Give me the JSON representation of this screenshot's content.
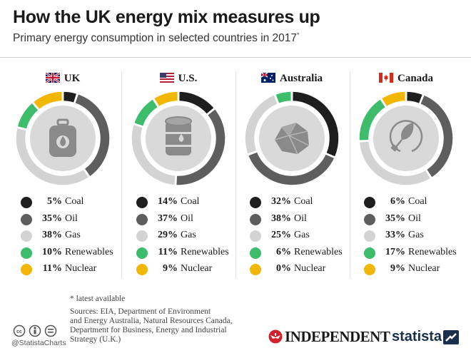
{
  "title": "How the UK energy mix measures up",
  "subtitle": "Primary energy consumption in selected countries in 2017",
  "subtitle_mark": "*",
  "colors": {
    "Coal": "#1e1e1e",
    "Oil": "#5e5e5e",
    "Gas": "#d3d3d3",
    "Renewables": "#3dbd6b",
    "Nuclear": "#f2b705"
  },
  "chart_data": [
    {
      "type": "pie",
      "country": "UK",
      "icon": "gas-cylinder-icon",
      "categories": [
        "Coal",
        "Oil",
        "Gas",
        "Renewables",
        "Nuclear"
      ],
      "values": [
        5,
        35,
        38,
        10,
        11
      ],
      "pct_labels": [
        "5%",
        "35%",
        "38%",
        "10%",
        "11%"
      ]
    },
    {
      "type": "pie",
      "country": "U.S.",
      "icon": "oil-barrel-icon",
      "categories": [
        "Coal",
        "Oil",
        "Gas",
        "Renewables",
        "Nuclear"
      ],
      "values": [
        14,
        37,
        29,
        11,
        9
      ],
      "pct_labels": [
        "14%",
        "37%",
        "29%",
        "11%",
        "9%"
      ]
    },
    {
      "type": "pie",
      "country": "Australia",
      "icon": "coal-lump-icon",
      "categories": [
        "Coal",
        "Oil",
        "Gas",
        "Renewables",
        "Nuclear"
      ],
      "values": [
        32,
        38,
        25,
        6,
        0
      ],
      "pct_labels": [
        "32%",
        "38%",
        "25%",
        "6%",
        "0%"
      ]
    },
    {
      "type": "pie",
      "country": "Canada",
      "icon": "leaf-plug-icon",
      "categories": [
        "Coal",
        "Oil",
        "Gas",
        "Renewables",
        "Nuclear"
      ],
      "values": [
        6,
        35,
        33,
        17,
        9
      ],
      "pct_labels": [
        "6%",
        "35%",
        "33%",
        "17%",
        "9%"
      ]
    }
  ],
  "footnote": "* latest available",
  "sources_lines": [
    "Sources: EIA, Department of Environment",
    "and Energy Australia, Natural Resources Canada,",
    "Department for Business, Energy and Industrial",
    "Strategy (U.K.)"
  ],
  "cc_handle": "@StatistaCharts",
  "brand_independent": "INDEPENDENT",
  "brand_statista": "statista"
}
